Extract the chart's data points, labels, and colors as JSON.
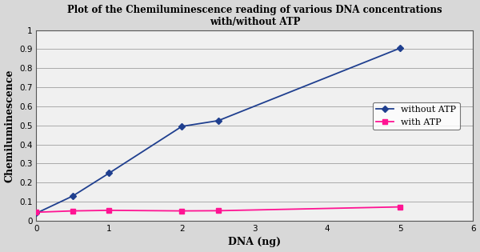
{
  "title_line1": "Plot of the Chemiluminescence reading of various DNA concentrations",
  "title_line2": "with/without ATP",
  "xlabel": "DNA (ng)",
  "ylabel": "Chemiluminescence",
  "xlim": [
    0,
    6
  ],
  "ylim": [
    0,
    1
  ],
  "xticks": [
    0,
    1,
    2,
    3,
    4,
    5,
    6
  ],
  "yticks": [
    0,
    0.1,
    0.2,
    0.3,
    0.4,
    0.5,
    0.6,
    0.7,
    0.8,
    0.9,
    1
  ],
  "without_atp_x": [
    0,
    0.5,
    1,
    2,
    2.5,
    5
  ],
  "without_atp_y": [
    0.04,
    0.13,
    0.25,
    0.495,
    0.525,
    0.905
  ],
  "with_atp_x": [
    0,
    0.5,
    1,
    2,
    2.5,
    5
  ],
  "with_atp_y": [
    0.045,
    0.052,
    0.055,
    0.052,
    0.053,
    0.073
  ],
  "color_without_atp": "#1F3F8F",
  "color_with_atp": "#FF1493",
  "legend_without_atp": "without ATP",
  "legend_with_atp": "with ATP",
  "plot_bg_color": "#f0f0f0",
  "fig_bg_color": "#d8d8d8",
  "grid_color": "#aaaaaa",
  "title_fontsize": 8.5,
  "axis_label_fontsize": 9,
  "tick_fontsize": 7.5,
  "legend_fontsize": 8
}
